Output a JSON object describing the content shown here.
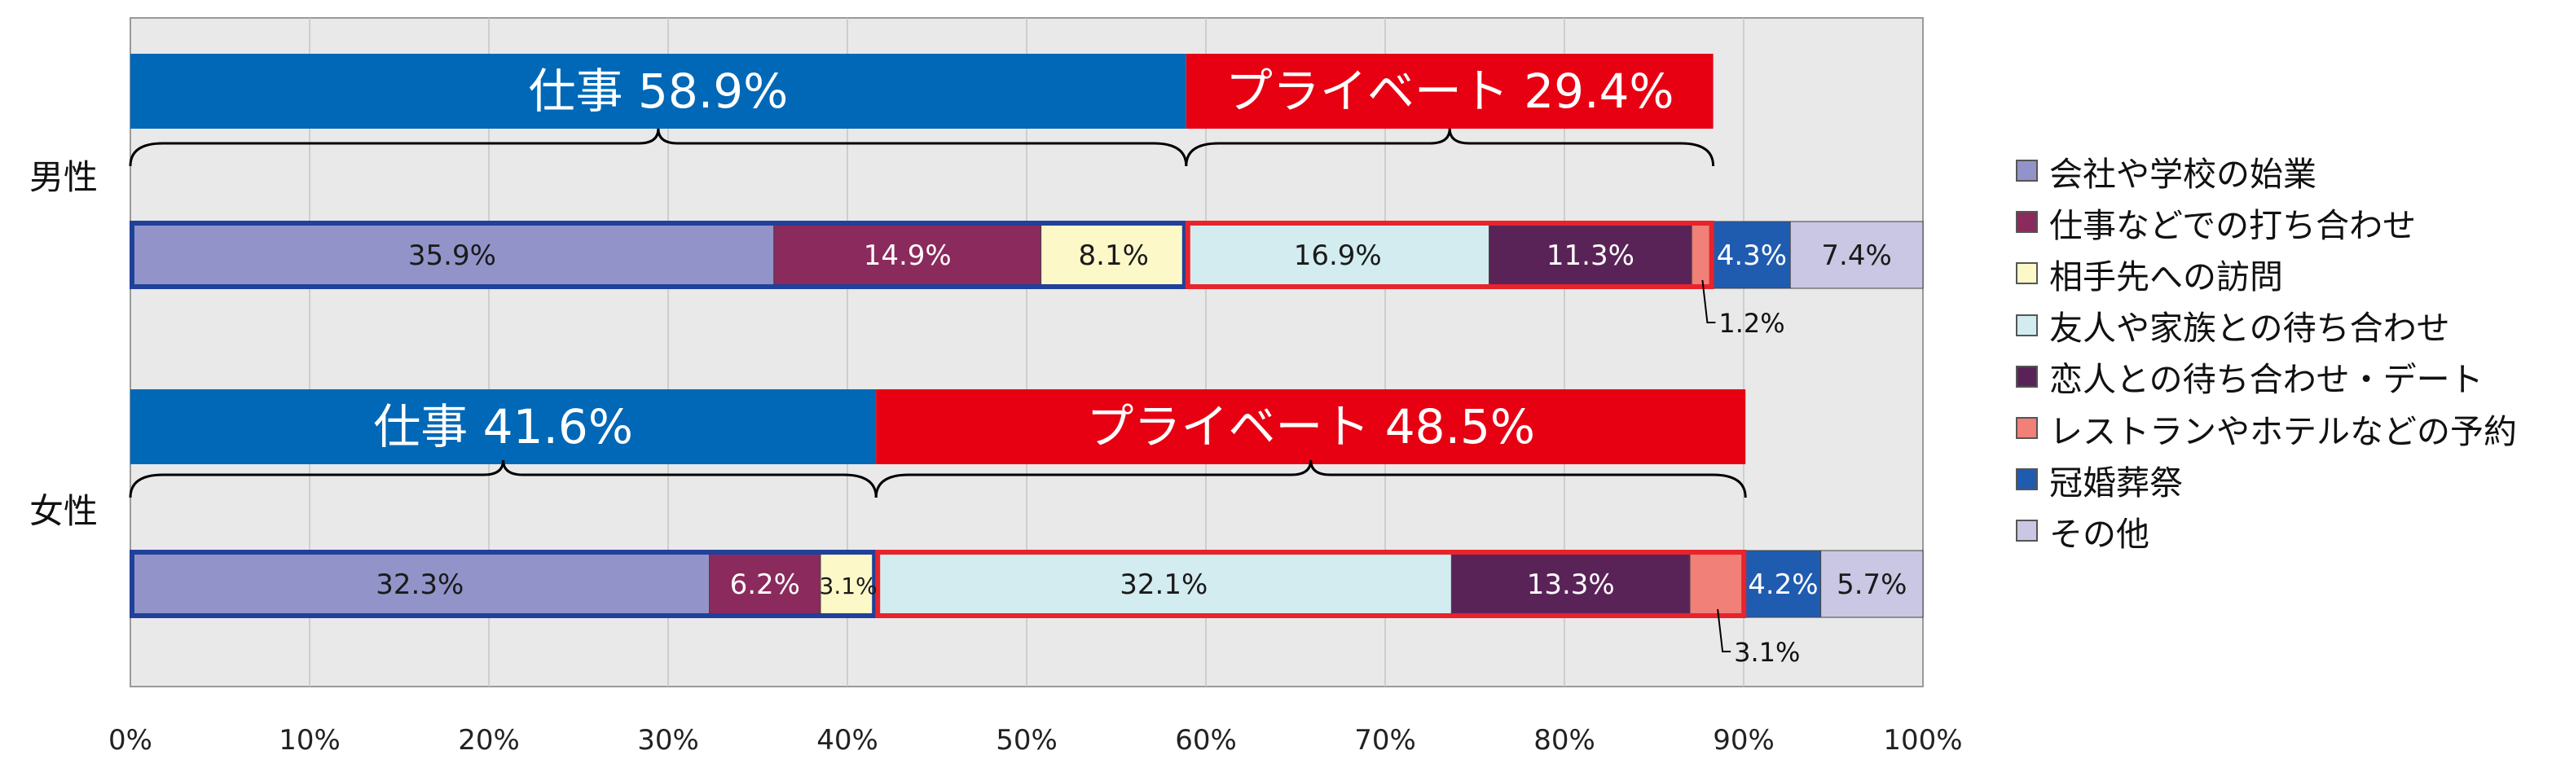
{
  "chart_data": {
    "type": "bar",
    "stacked": true,
    "orientation": "horizontal",
    "x_ticks": [
      "0%",
      "10%",
      "20%",
      "30%",
      "40%",
      "50%",
      "60%",
      "70%",
      "80%",
      "90%",
      "100%"
    ],
    "xlim": [
      0,
      100
    ],
    "grid": true,
    "legend_position": "right",
    "groups": [
      {
        "label": "男性",
        "summary": [
          {
            "label": "仕事",
            "value": 58.9,
            "value_label": "58.9%",
            "color": "#0068b7"
          },
          {
            "label": "プライベート",
            "value": 29.4,
            "value_label": "29.4%",
            "color": "#e60012"
          }
        ],
        "segments": [
          {
            "value": 35.9,
            "label": "35.9%"
          },
          {
            "value": 14.9,
            "label": "14.9%"
          },
          {
            "value": 8.1,
            "label": "8.1%"
          },
          {
            "value": 16.9,
            "label": "16.9%"
          },
          {
            "value": 11.3,
            "label": "11.3%"
          },
          {
            "value": 1.2,
            "label": "1.2%"
          },
          {
            "value": 4.3,
            "label": "4.3%"
          },
          {
            "value": 7.4,
            "label": "7.4%"
          }
        ]
      },
      {
        "label": "女性",
        "summary": [
          {
            "label": "仕事",
            "value": 41.6,
            "value_label": "41.6%",
            "color": "#0068b7"
          },
          {
            "label": "プライベート",
            "value": 48.5,
            "value_label": "48.5%",
            "color": "#e60012"
          }
        ],
        "segments": [
          {
            "value": 32.3,
            "label": "32.3%"
          },
          {
            "value": 6.2,
            "label": "6.2%"
          },
          {
            "value": 3.1,
            "label": "3.1%"
          },
          {
            "value": 32.1,
            "label": "32.1%"
          },
          {
            "value": 13.3,
            "label": "13.3%"
          },
          {
            "value": 3.1,
            "label": "3.1%"
          },
          {
            "value": 4.2,
            "label": "4.2%"
          },
          {
            "value": 5.7,
            "label": "5.7%"
          }
        ]
      }
    ],
    "series": [
      {
        "name": "会社や学校の始業",
        "color": "#9294c9",
        "text_color": "#1a1a1a"
      },
      {
        "name": "仕事などでの打ち合わせ",
        "color": "#8b2a5c",
        "text_color": "#ffffff"
      },
      {
        "name": "相手先への訪問",
        "color": "#fdf8c8",
        "text_color": "#1a1a1a"
      },
      {
        "name": "友人や家族との待ち合わせ",
        "color": "#d3ecf0",
        "text_color": "#1a1a1a"
      },
      {
        "name": "恋人との待ち合わせ・デート",
        "color": "#5a2358",
        "text_color": "#ffffff"
      },
      {
        "name": "レストランやホテルなどの予約",
        "color": "#f08078",
        "text_color": "#1a1a1a"
      },
      {
        "name": "冠婚葬祭",
        "color": "#1f5cb0",
        "text_color": "#ffffff"
      },
      {
        "name": "その他",
        "color": "#c9c7e3",
        "text_color": "#1a1a1a"
      }
    ],
    "outline_colors": {
      "work": "#20409a",
      "private": "#e8232b"
    }
  }
}
